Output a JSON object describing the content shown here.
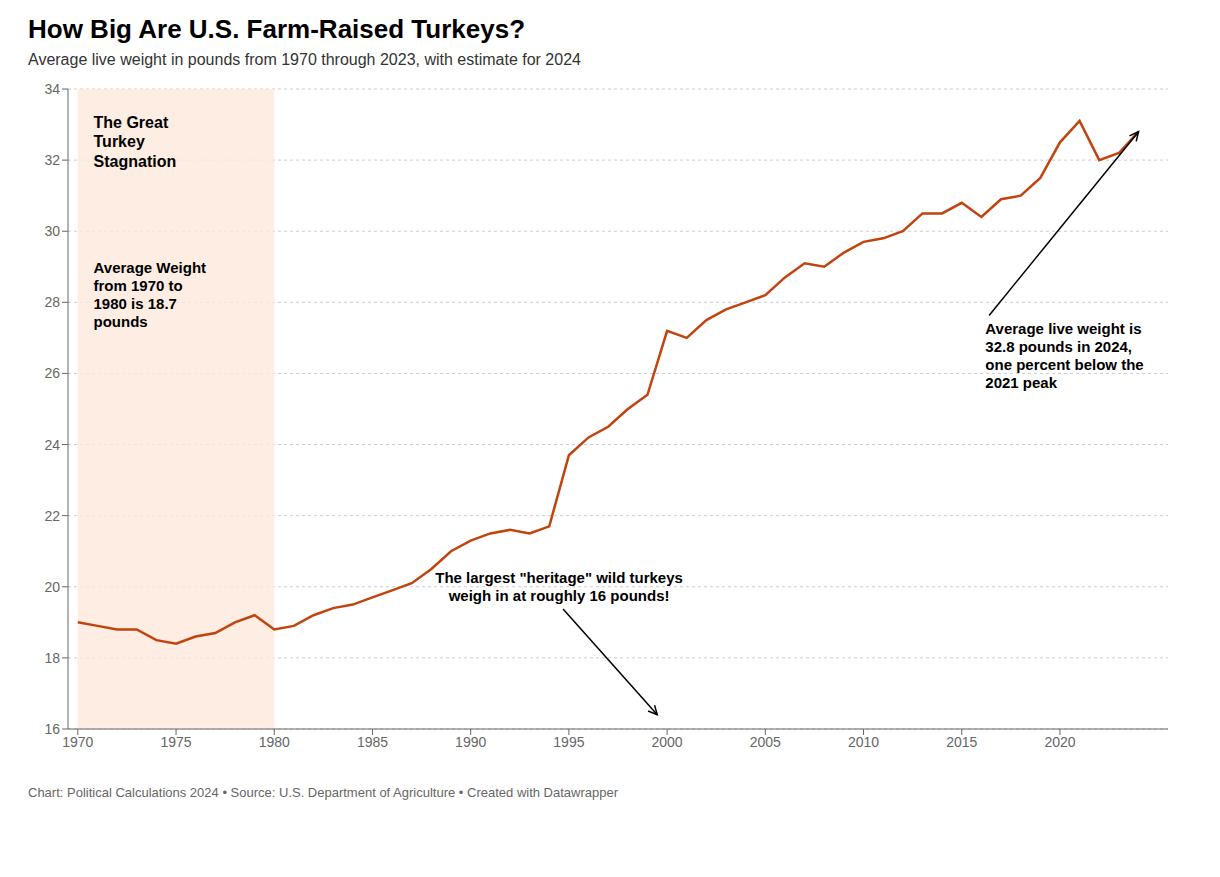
{
  "chart_data": {
    "type": "line",
    "title": "How Big Are U.S. Farm-Raised Turkeys?",
    "subtitle": "Average live weight in pounds from 1970 through 2023, with estimate for 2024",
    "caption": "Chart: Political Calculations 2024 • Source: U.S. Department of Agriculture • Created with Datawrapper",
    "x": [
      1970,
      1971,
      1972,
      1973,
      1974,
      1975,
      1976,
      1977,
      1978,
      1979,
      1980,
      1981,
      1982,
      1983,
      1984,
      1985,
      1986,
      1987,
      1988,
      1989,
      1990,
      1991,
      1992,
      1993,
      1994,
      1995,
      1996,
      1997,
      1998,
      1999,
      2000,
      2001,
      2002,
      2003,
      2004,
      2005,
      2006,
      2007,
      2008,
      2009,
      2010,
      2011,
      2012,
      2013,
      2014,
      2015,
      2016,
      2017,
      2018,
      2019,
      2020,
      2021,
      2022,
      2023,
      2024
    ],
    "values": [
      19.0,
      18.9,
      18.8,
      18.8,
      18.5,
      18.4,
      18.6,
      18.7,
      19.0,
      19.2,
      18.8,
      18.9,
      19.2,
      19.4,
      19.5,
      19.7,
      19.9,
      20.1,
      20.5,
      21.0,
      21.3,
      21.5,
      21.6,
      21.5,
      21.7,
      23.7,
      24.2,
      24.5,
      25.0,
      25.4,
      27.2,
      27.0,
      27.5,
      27.8,
      28.0,
      28.2,
      28.7,
      29.1,
      29.0,
      29.4,
      29.7,
      29.8,
      30.0,
      30.5,
      30.5,
      30.8,
      30.4,
      30.9,
      31.0,
      31.5,
      32.5,
      33.1,
      32.0,
      32.2,
      32.8
    ],
    "color": "#c1440e",
    "xlim": [
      1969.5,
      2025.5
    ],
    "ylim": [
      16,
      34
    ],
    "xticks": [
      1970,
      1975,
      1980,
      1985,
      1990,
      1995,
      2000,
      2005,
      2010,
      2015,
      2020
    ],
    "yticks": [
      16,
      18,
      20,
      22,
      24,
      26,
      28,
      30,
      32,
      34
    ],
    "grid": "y",
    "shaded_x": [
      1970,
      1980
    ],
    "shaded_color": "#fde8dc",
    "annotations": [
      {
        "text": "The Great\nTurkey\nStagnation",
        "x": 1970.8,
        "y": 33.3
      },
      {
        "text": "Average Weight\nfrom 1970 to\n1980 is 18.7\npounds",
        "x": 1970.8,
        "y": 29.2
      },
      {
        "text": "The largest \"heritage\" wild turkeys\nweigh in at roughly 16 pounds!",
        "x": 1994.5,
        "y": 19.5,
        "arrow": [
          1999.5,
          16.4
        ]
      },
      {
        "text": "Average live weight is\n32.8 pounds in 2024,\none percent below the\n2021 peak",
        "x": 2016.2,
        "y": 27.5,
        "arrow": [
          2024.0,
          32.8
        ]
      }
    ]
  }
}
